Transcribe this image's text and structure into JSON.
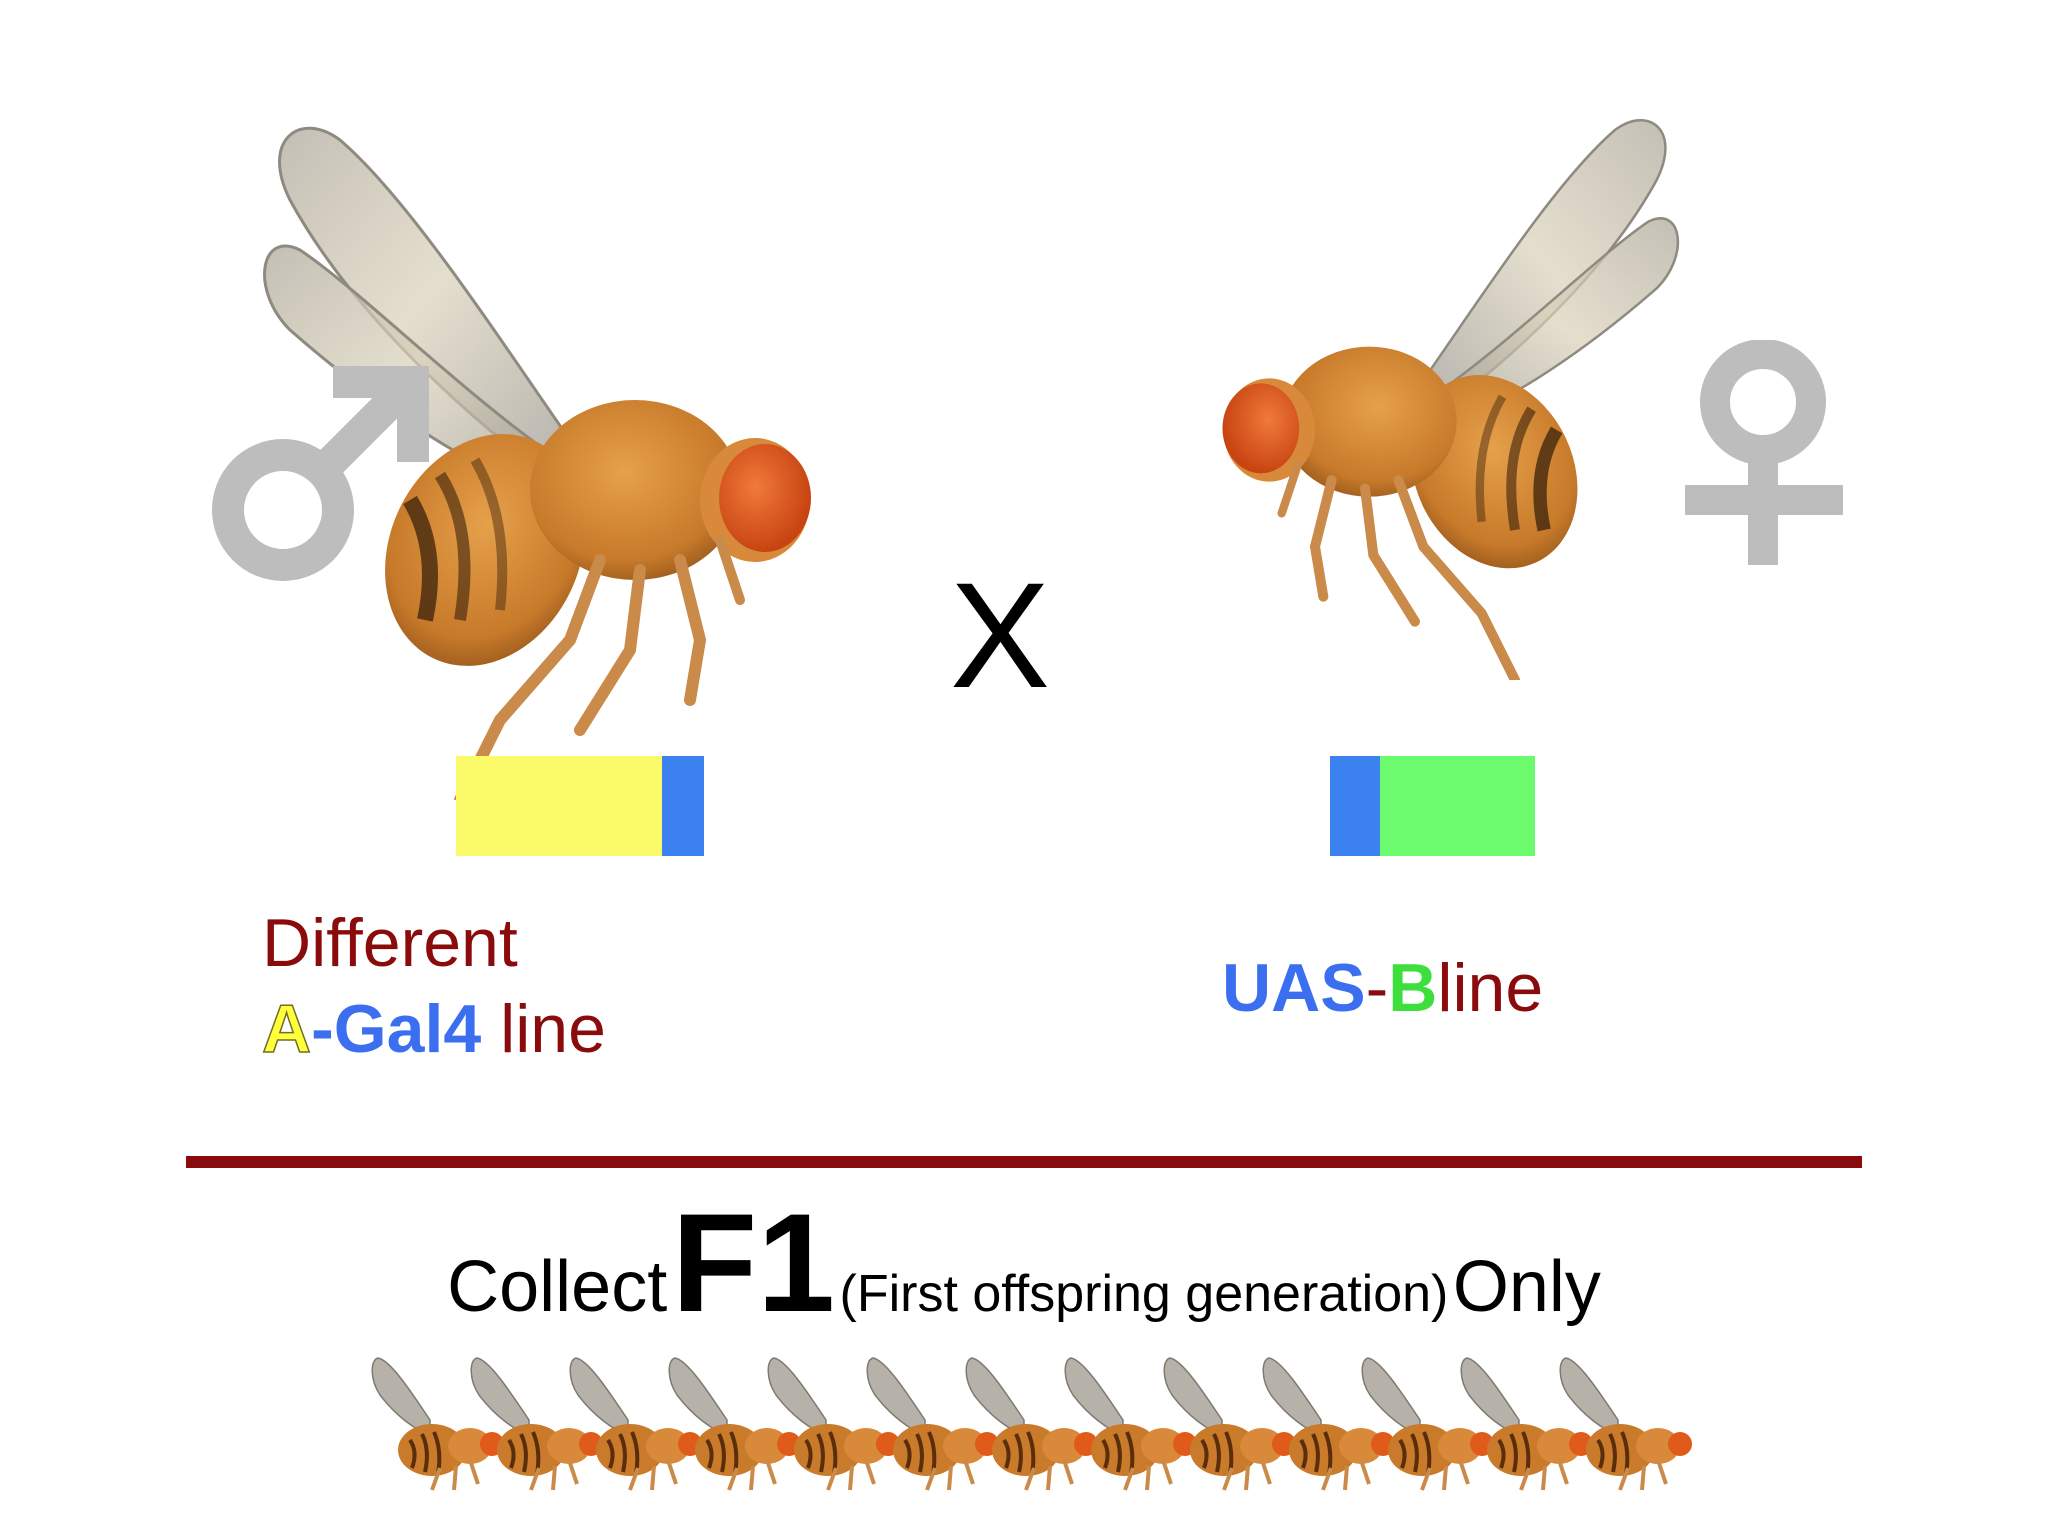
{
  "colors": {
    "gal4_yellow": "#fbfb6a",
    "gal4_blue": "#3b82f0",
    "uas_green": "#6cfb6c",
    "text_darkred": "#8a0b0b",
    "symbol_gray": "#bdbdbd"
  },
  "cross": {
    "symbol": "X",
    "male_symbol": "♂",
    "female_symbol": "♀"
  },
  "left_line": {
    "line1": "Different",
    "a": "A",
    "dash": "-",
    "gal4": "Gal4",
    "suffix": " line"
  },
  "right_line": {
    "uas": "UAS",
    "dash": "-",
    "b": "B",
    "suffix": "line"
  },
  "bottom": {
    "collect": "Collect",
    "f1": "F1",
    "paren": "(First offspring generation)",
    "only": "Only"
  },
  "icons": {
    "male_fly": "fruit-fly-icon",
    "female_fly": "fruit-fly-icon",
    "offspring_count": 13
  }
}
